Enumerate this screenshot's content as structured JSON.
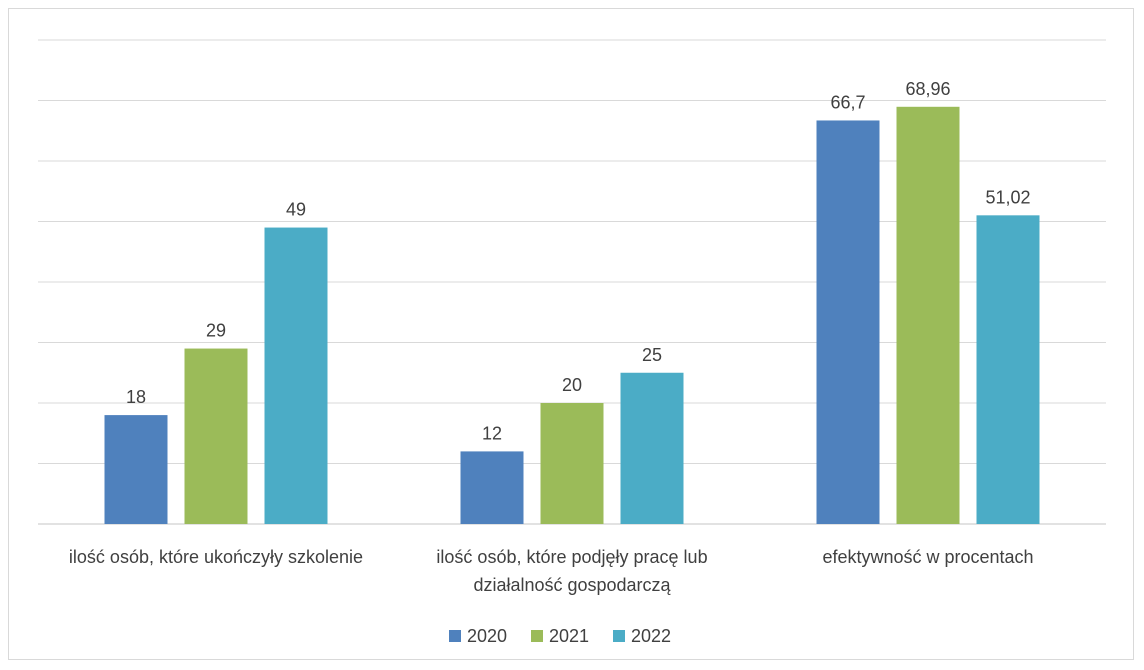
{
  "chart_data": {
    "type": "bar",
    "title": "",
    "xlabel": "",
    "ylabel": "",
    "ylim": [
      0,
      80
    ],
    "grid": true,
    "legend_position": "bottom",
    "categories": [
      [
        "ilość osób, które ukończyły szkolenie"
      ],
      [
        "ilość osób, które podjęły pracę lub",
        "działalność gospodarczą"
      ],
      [
        "efektywność w procentach"
      ]
    ],
    "series": [
      {
        "name": "2020",
        "color": "#4f81bd",
        "values": [
          18,
          12,
          66.7
        ],
        "labels": [
          "18",
          "12",
          "66,7"
        ]
      },
      {
        "name": "2021",
        "color": "#9bbb59",
        "values": [
          29,
          20,
          68.96
        ],
        "labels": [
          "29",
          "20",
          "68,96"
        ]
      },
      {
        "name": "2022",
        "color": "#4bacc6",
        "values": [
          49,
          25,
          51.02
        ],
        "labels": [
          "49",
          "25",
          "51,02"
        ]
      }
    ]
  }
}
